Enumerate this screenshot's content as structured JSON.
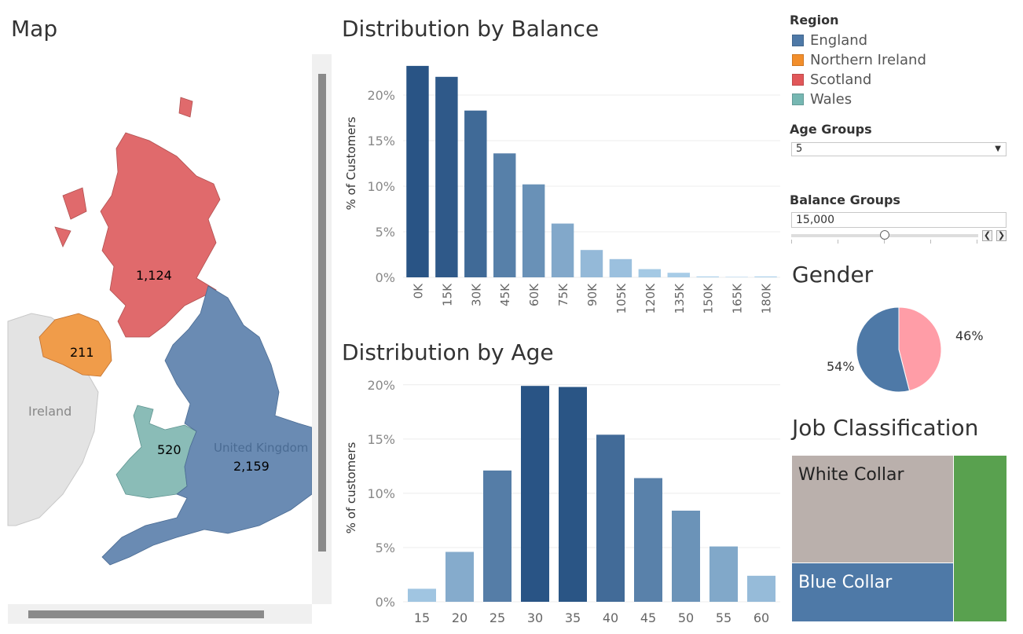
{
  "titles": {
    "map": "Map",
    "balance": "Distribution by Balance",
    "age": "Distribution by Age",
    "gender": "Gender",
    "job": "Job Classification"
  },
  "legend": {
    "title": "Region",
    "items": [
      {
        "label": "England",
        "color": "#4e79a7"
      },
      {
        "label": "Northern Ireland",
        "color": "#f28e2b"
      },
      {
        "label": "Scotland",
        "color": "#e15759"
      },
      {
        "label": "Wales",
        "color": "#76b7b2"
      }
    ]
  },
  "controls": {
    "age_groups_title": "Age Groups",
    "age_groups_value": "5",
    "balance_groups_title": "Balance Groups",
    "balance_groups_value": "15,000",
    "prev_icon": "chevron-left-icon",
    "next_icon": "chevron-right-icon"
  },
  "map": {
    "regions": [
      {
        "name": "Scotland",
        "value": "1,124",
        "color": "#e06a6c"
      },
      {
        "name": "Northern Ireland",
        "value": "211",
        "color": "#f09c4a"
      },
      {
        "name": "Wales",
        "value": "520",
        "color": "#8abcb7"
      },
      {
        "name": "England",
        "value": "2,159",
        "color": "#6a8bb3"
      }
    ],
    "background_labels": {
      "ireland": "Ireland",
      "uk": "United Kingdom"
    }
  },
  "chart_data": [
    {
      "type": "bar",
      "title": "Distribution by Balance",
      "xlabel": "",
      "ylabel": "% of Customers",
      "categories": [
        "0K",
        "15K",
        "30K",
        "45K",
        "60K",
        "75K",
        "90K",
        "105K",
        "120K",
        "135K",
        "150K",
        "165K",
        "180K"
      ],
      "values": [
        23.2,
        22.0,
        18.3,
        13.6,
        10.2,
        5.9,
        3.0,
        2.0,
        0.9,
        0.5,
        0.1,
        0.05,
        0.1
      ],
      "ylim": [
        0,
        25
      ],
      "yticks": [
        0,
        5,
        10,
        15,
        20
      ],
      "ytick_labels": [
        "0%",
        "5%",
        "10%",
        "15%",
        "20%"
      ],
      "grid": true
    },
    {
      "type": "bar",
      "title": "Distribution by Age",
      "xlabel": "",
      "ylabel": "% of customers",
      "categories": [
        "15",
        "20",
        "25",
        "30",
        "35",
        "40",
        "45",
        "50",
        "55",
        "60"
      ],
      "values": [
        1.2,
        4.6,
        12.1,
        19.9,
        19.8,
        15.4,
        11.4,
        8.4,
        5.1,
        2.4
      ],
      "ylim": [
        0,
        21
      ],
      "yticks": [
        0,
        5,
        10,
        15,
        20
      ],
      "ytick_labels": [
        "0%",
        "5%",
        "10%",
        "15%",
        "20%"
      ],
      "grid": true
    },
    {
      "type": "pie",
      "title": "Gender",
      "slices": [
        {
          "label": "46%",
          "value": 46,
          "color": "#ff9da7"
        },
        {
          "label": "54%",
          "value": 54,
          "color": "#4e79a7"
        }
      ]
    },
    {
      "type": "treemap",
      "title": "Job Classification",
      "cells": [
        {
          "label": "White Collar",
          "color": "#bab0ac",
          "text_color": "#222222"
        },
        {
          "label": "Blue Collar",
          "color": "#4e79a7",
          "text_color": "#ffffff"
        },
        {
          "label": "",
          "color": "#59a14f",
          "text_color": "#ffffff"
        }
      ]
    }
  ]
}
